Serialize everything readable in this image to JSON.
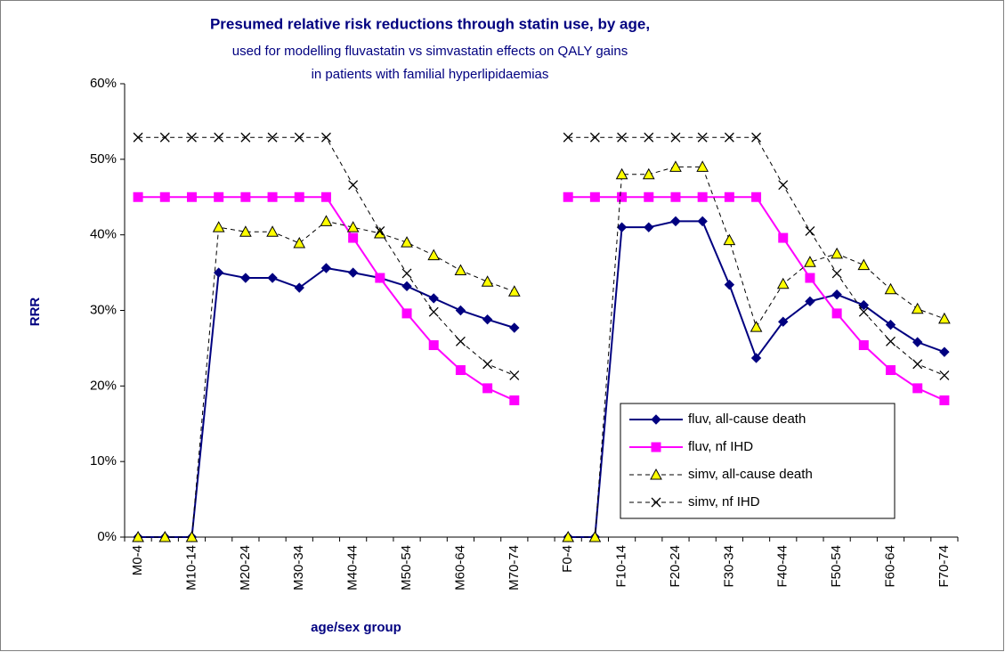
{
  "chart_data": {
    "type": "line",
    "title": "Presumed relative risk reductions through statin use, by age,",
    "subtitle": [
      "used for modelling fluvastatin vs simvastatin effects on QALY gains",
      "in patients with familial hyperlipidaemias"
    ],
    "x_label": "age/sex group",
    "y_label": "RRR",
    "categories": [
      "M0-4",
      null,
      "M10-14",
      null,
      "M20-24",
      null,
      "M30-34",
      null,
      "M40-44",
      null,
      "M50-54",
      null,
      "M60-64",
      null,
      "M70-74",
      null,
      "F0-4",
      null,
      "F10-14",
      null,
      "F20-24",
      null,
      "F30-34",
      null,
      "F40-44",
      null,
      "F50-54",
      null,
      "F60-64",
      null,
      "F70-74"
    ],
    "ylim": [
      0,
      60
    ],
    "yticks": [
      {
        "value": 0,
        "label": "0%"
      },
      {
        "value": 10,
        "label": "10%"
      },
      {
        "value": 20,
        "label": "20%"
      },
      {
        "value": 30,
        "label": "30%"
      },
      {
        "value": 40,
        "label": "40%"
      },
      {
        "value": 50,
        "label": "50%"
      },
      {
        "value": 60,
        "label": "60%"
      }
    ],
    "grid": false,
    "legend": "lower right",
    "series": [
      {
        "name": "fluv, all-cause death",
        "color": "#000080",
        "marker": "diamond",
        "marker_fill": "#000080",
        "dashed": false,
        "values": [
          0,
          0,
          0,
          35,
          34.3,
          34.3,
          33,
          35.6,
          35,
          34.3,
          33.2,
          31.6,
          30,
          28.8,
          27.7,
          null,
          0,
          0,
          41,
          41,
          41.8,
          41.8,
          33.4,
          23.7,
          28.5,
          31.2,
          32.1,
          30.7,
          28.1,
          25.8,
          24.5
        ]
      },
      {
        "name": "fluv, nf IHD",
        "color": "#ff00ff",
        "marker": "square",
        "marker_fill": "#ff00ff",
        "dashed": false,
        "values": [
          45,
          45,
          45,
          45,
          45,
          45,
          45,
          45,
          39.6,
          34.3,
          29.6,
          25.4,
          22.1,
          19.7,
          18.1,
          null,
          45,
          45,
          45,
          45,
          45,
          45,
          45,
          45,
          39.6,
          34.3,
          29.6,
          25.4,
          22.1,
          19.7,
          18.1
        ]
      },
      {
        "name": "simv, all-cause death",
        "color": "#000000",
        "marker": "triangle",
        "marker_fill": "#ffff00",
        "dashed": true,
        "values": [
          0,
          0,
          0,
          41,
          40.4,
          40.4,
          38.9,
          41.8,
          41,
          40.2,
          39,
          37.3,
          35.3,
          33.8,
          32.5,
          null,
          0,
          0,
          48,
          48,
          49,
          49,
          39.3,
          27.8,
          33.5,
          36.4,
          37.5,
          36,
          32.8,
          30.2,
          28.9
        ]
      },
      {
        "name": "simv, nf IHD",
        "color": "#000000",
        "marker": "x",
        "marker_fill": "none",
        "dashed": true,
        "values": [
          52.9,
          52.9,
          52.9,
          52.9,
          52.9,
          52.9,
          52.9,
          52.9,
          46.6,
          40.5,
          34.9,
          29.8,
          25.9,
          22.9,
          21.4,
          null,
          52.9,
          52.9,
          52.9,
          52.9,
          52.9,
          52.9,
          52.9,
          52.9,
          46.6,
          40.5,
          34.9,
          29.8,
          25.9,
          22.9,
          21.4
        ]
      }
    ]
  }
}
